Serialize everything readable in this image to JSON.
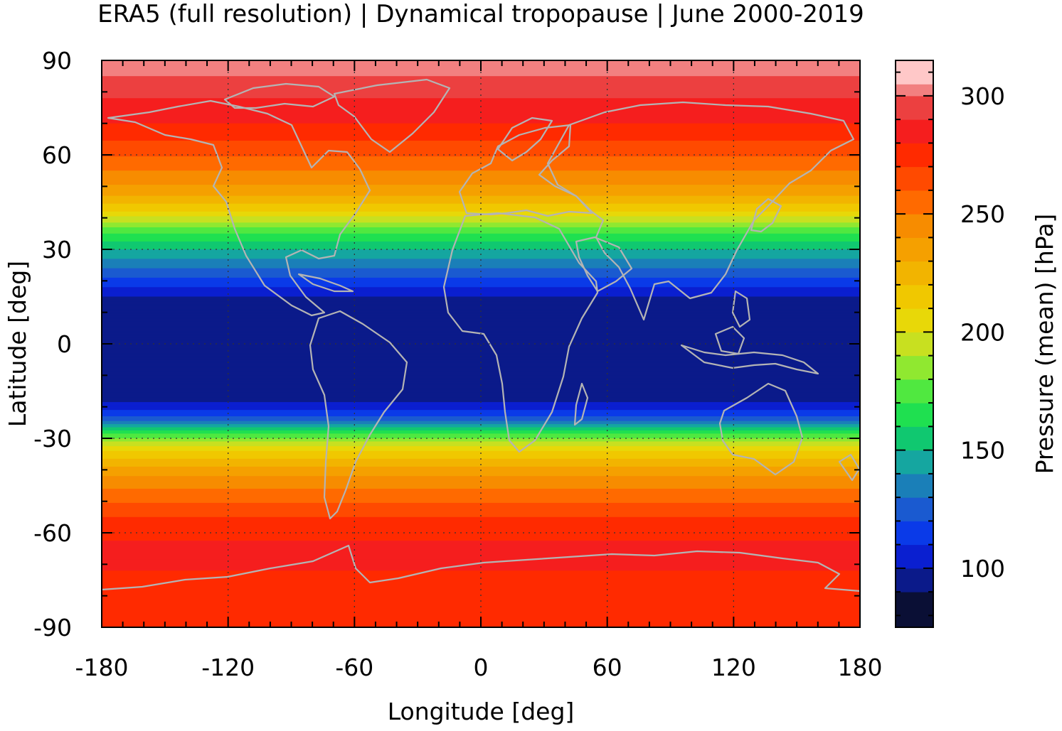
{
  "chart_data": {
    "type": "heatmap",
    "title": "ERA5 (full resolution) | Dynamical tropopause | June 2000-2019",
    "xlabel": "Longitude [deg]",
    "ylabel": "Latitude [deg]",
    "colorbar_label": "Pressure (mean) [hPa]",
    "xlim": [
      -180,
      180
    ],
    "ylim": [
      -90,
      90
    ],
    "x_ticks": [
      -180,
      -120,
      -60,
      0,
      60,
      120,
      180
    ],
    "x_tick_labels": [
      "-180",
      "-120",
      "-60",
      "0",
      "60",
      "120",
      "180"
    ],
    "y_ticks": [
      90,
      60,
      30,
      0,
      -30,
      -60,
      -90
    ],
    "y_tick_labels": [
      "90",
      "60",
      "30",
      "0",
      "-30",
      "-60",
      "-90"
    ],
    "grid": true,
    "colorbar": {
      "range": [
        75,
        315
      ],
      "ticks": [
        100,
        150,
        200,
        250,
        300
      ],
      "tick_labels": [
        "100",
        "150",
        "200",
        "250",
        "300"
      ],
      "levels": [
        75,
        90,
        100,
        110,
        120,
        130,
        140,
        150,
        160,
        170,
        180,
        190,
        200,
        210,
        220,
        230,
        240,
        250,
        260,
        270,
        280,
        290,
        300,
        305,
        315
      ],
      "colors": [
        "#0a0f35",
        "#0b1a8a",
        "#0a1fd0",
        "#0a3ae8",
        "#1a5ad0",
        "#1a7fb8",
        "#15a6a0",
        "#10c870",
        "#1fe050",
        "#50e840",
        "#90e830",
        "#c8e020",
        "#e8d808",
        "#f0c800",
        "#f2b400",
        "#f5a000",
        "#f78c00",
        "#ff6a00",
        "#ff4a00",
        "#ff2a00",
        "#f51e1e",
        "#ec4040",
        "#f28080",
        "#ffc8c8"
      ]
    },
    "zonal_profile": {
      "lat": [
        -90,
        -80,
        -72,
        -65,
        -55,
        -48,
        -40,
        -33,
        -28,
        -24,
        -20,
        -15,
        0,
        12,
        18,
        24,
        30,
        36,
        42,
        48,
        55,
        62,
        70,
        78,
        85,
        90
      ],
      "pressure": [
        270,
        275,
        280,
        283,
        270,
        255,
        235,
        205,
        165,
        125,
        105,
        90,
        90,
        90,
        110,
        130,
        150,
        175,
        210,
        235,
        250,
        265,
        280,
        290,
        300,
        305
      ]
    },
    "overlay": "coastlines"
  }
}
